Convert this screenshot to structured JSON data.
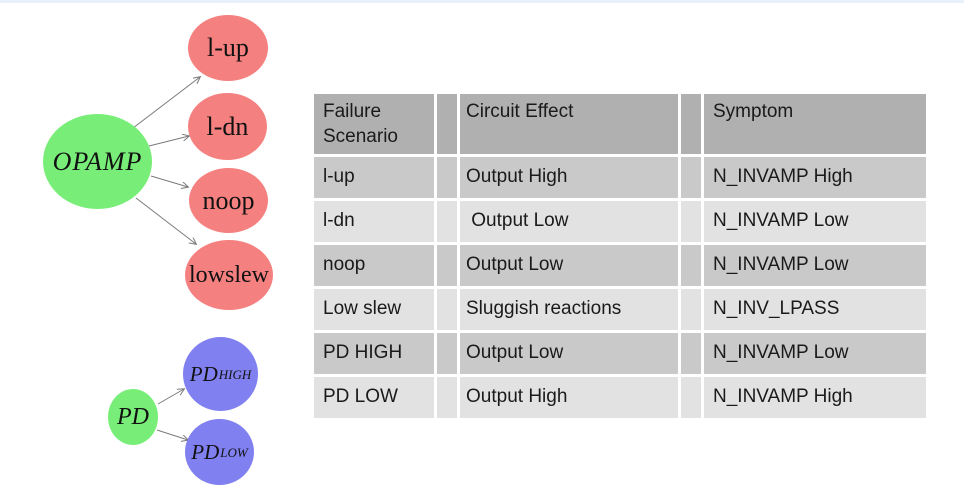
{
  "page": {
    "background": "#ffffff",
    "top_strip_color": "#e8f1fb"
  },
  "diagram": {
    "arrow_color": "#7a7a7a",
    "node_colors": {
      "root_green": "#78ee78",
      "failure_red": "#f58080",
      "pd_blue": "#8080f0"
    },
    "opamp_tree": {
      "root_label": "OPAMP",
      "children": [
        {
          "label": "l-up"
        },
        {
          "label": "l-dn"
        },
        {
          "label": "noop"
        },
        {
          "label": "lowslew"
        }
      ]
    },
    "pd_tree": {
      "root_label": "PD",
      "children": [
        {
          "label": "PD",
          "sub": "HIGH"
        },
        {
          "label": "PD",
          "sub": "LOW"
        }
      ]
    }
  },
  "table": {
    "headers": [
      "Failure Scenario",
      "Circuit Effect",
      "Symptom"
    ],
    "rows": [
      [
        "l-up",
        "Output High",
        "N_INVAMP High"
      ],
      [
        "l-dn",
        " Output Low",
        "N_INVAMP Low"
      ],
      [
        "noop",
        "Output Low",
        "N_INVAMP Low"
      ],
      [
        "Low slew",
        "Sluggish reactions",
        "N_INV_LPASS"
      ],
      [
        "PD HIGH",
        "Output Low",
        "N_INVAMP Low"
      ],
      [
        "PD LOW",
        "Output High",
        "N_INVAMP High"
      ]
    ],
    "colors": {
      "header_bg": "#b0b0b0",
      "row_medium_bg": "#c9c9c9",
      "row_light_bg": "#e2e2e2",
      "grid_line": "#ffffff",
      "text": "#1a1a1a"
    }
  }
}
